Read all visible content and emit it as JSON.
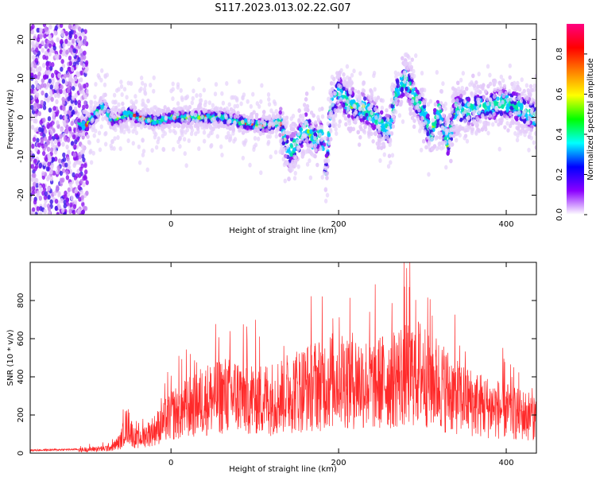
{
  "title": "S117.2023.013.02.22.G07",
  "chart_data": [
    {
      "type": "heatmap",
      "xlabel": "Height of straight line (km)",
      "ylabel": "Frequency (Hz)",
      "xlim": [
        -168,
        436
      ],
      "ylim": [
        -25,
        24
      ],
      "xticks": [
        0,
        200,
        400
      ],
      "xtick_labels": [
        "0",
        "200",
        "400"
      ],
      "yticks": [
        -20,
        -10,
        0,
        10,
        20
      ],
      "ytick_labels": [
        "-20",
        "-10",
        "0",
        "10",
        "20"
      ],
      "colorbar": {
        "label": "Normalized spectral amplitude",
        "range": [
          0,
          0.95
        ],
        "ticks": [
          0.0,
          0.2,
          0.4,
          0.6,
          0.8
        ],
        "tick_labels": [
          "0.0",
          "0.2",
          "0.4",
          "0.6",
          "0.8"
        ],
        "colormap": [
          "#ffffff",
          "#8b00ff",
          "#0000ff",
          "#00ffff",
          "#00ff00",
          "#ffff00",
          "#ff8000",
          "#ff0000",
          "#ff0080"
        ]
      },
      "ridge": {
        "x": [
          -100,
          -90,
          -80,
          -70,
          -60,
          -50,
          -40,
          -20,
          0,
          20,
          40,
          60,
          80,
          100,
          120,
          130,
          140,
          150,
          160,
          170,
          180,
          185,
          190,
          200,
          210,
          220,
          240,
          250,
          260,
          270,
          280,
          290,
          300,
          310,
          320,
          330,
          340,
          360,
          380,
          400,
          420,
          436
        ],
        "y": [
          -2,
          1,
          3,
          -1,
          0,
          1,
          0,
          -1,
          0,
          0,
          0,
          0,
          -1,
          -2,
          -2,
          -1,
          -9,
          -7,
          -2,
          -6,
          -4,
          -15,
          2,
          7,
          4,
          3,
          1,
          -2,
          -3,
          7,
          10,
          5,
          2,
          -5,
          2,
          -7,
          2,
          2,
          3,
          4,
          2,
          0
        ]
      }
    },
    {
      "type": "line",
      "xlabel": "Height of straight line (km)",
      "ylabel": "SNR (10 * v/v)",
      "xlim": [
        -168,
        436
      ],
      "ylim": [
        0,
        1000
      ],
      "xticks": [
        0,
        200,
        400
      ],
      "xtick_labels": [
        "0",
        "200",
        "400"
      ],
      "yticks": [
        0,
        200,
        400,
        600,
        800
      ],
      "ytick_labels": [
        "0",
        "200",
        "400",
        "600",
        "800"
      ],
      "color": "#ff2a2a",
      "envelope": {
        "x": [
          -168,
          -110,
          -100,
          -80,
          -70,
          -60,
          -55,
          -50,
          -45,
          -40,
          -20,
          0,
          20,
          40,
          60,
          80,
          100,
          120,
          140,
          160,
          180,
          200,
          220,
          240,
          260,
          280,
          300,
          320,
          340,
          360,
          380,
          400,
          420,
          436
        ],
        "y": [
          15,
          20,
          25,
          30,
          40,
          80,
          170,
          180,
          110,
          90,
          150,
          250,
          300,
          350,
          380,
          380,
          360,
          360,
          400,
          430,
          460,
          500,
          480,
          450,
          480,
          530,
          530,
          450,
          380,
          330,
          300,
          280,
          250,
          240
        ]
      }
    }
  ]
}
